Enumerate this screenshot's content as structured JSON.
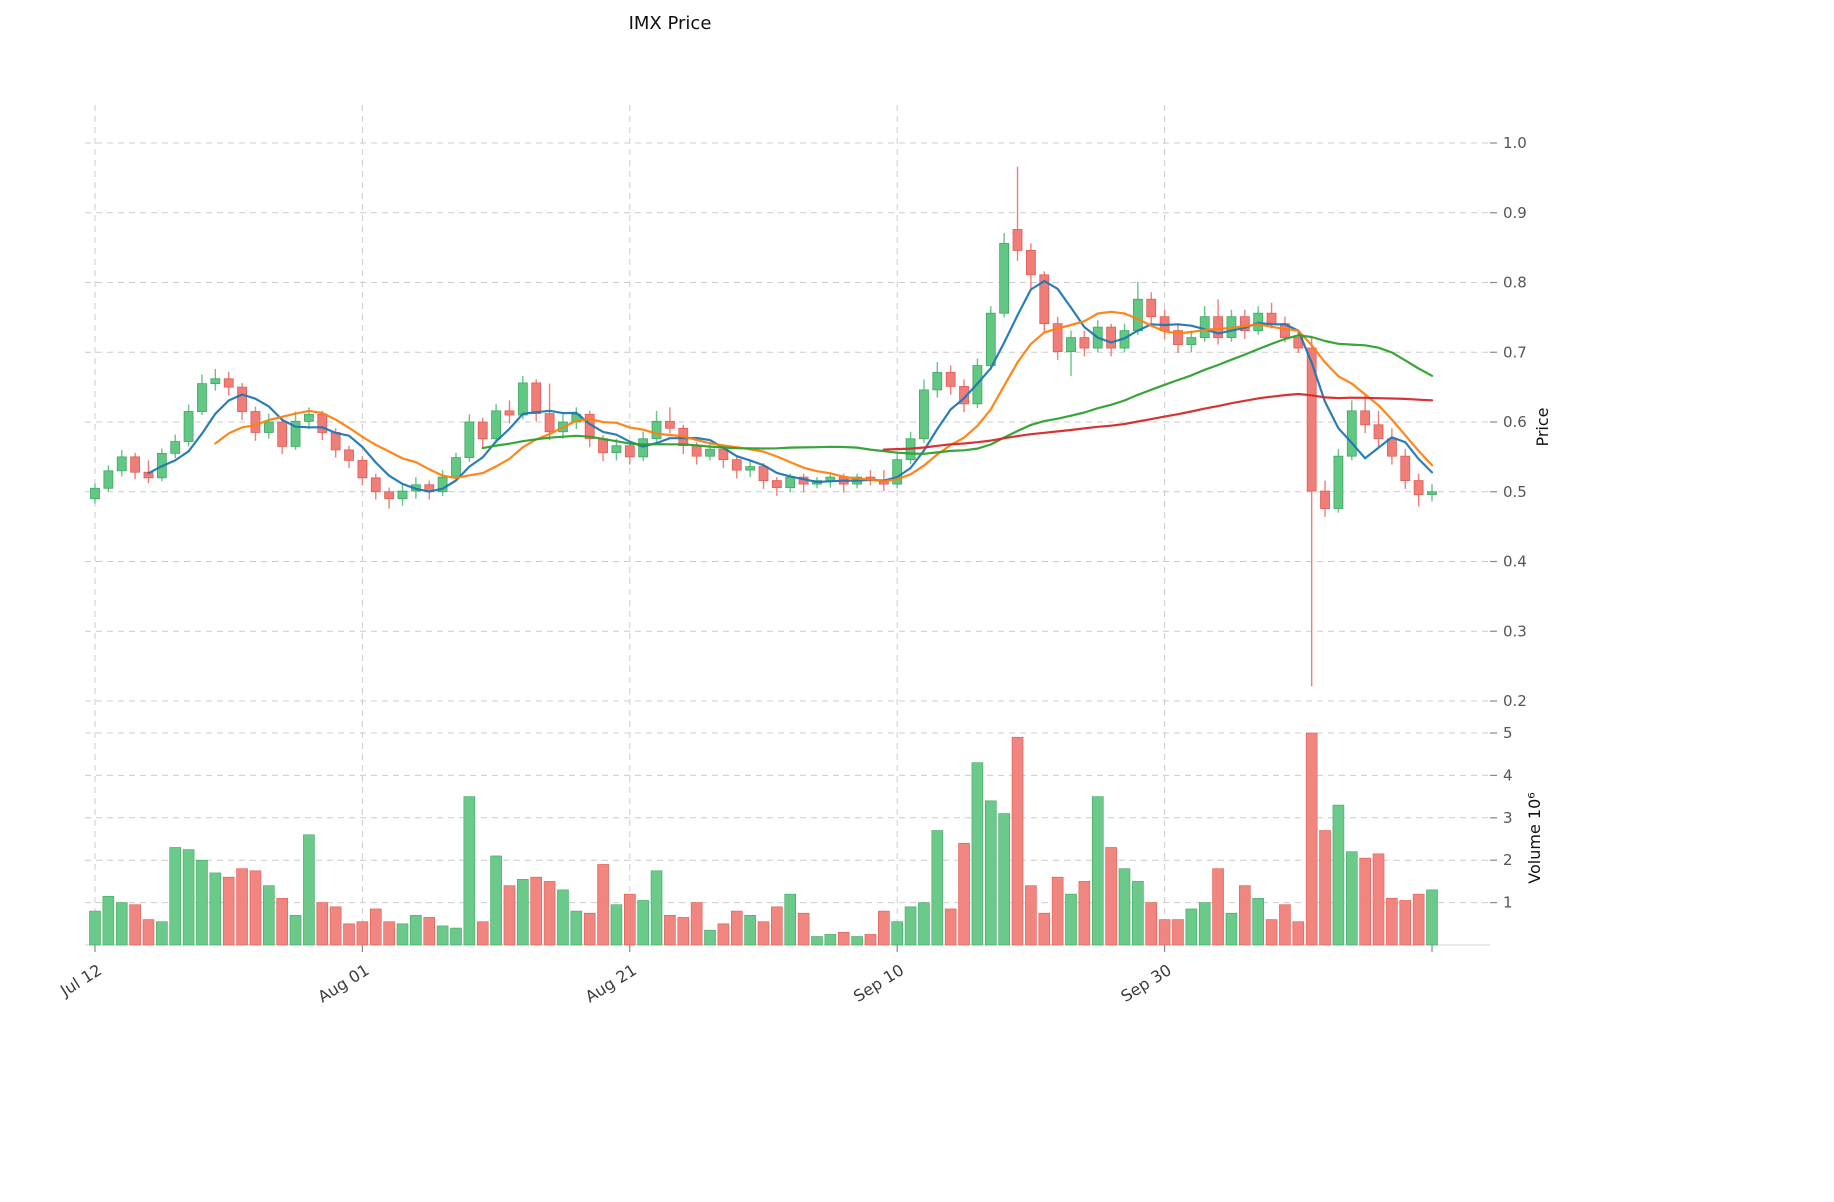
{
  "chart_data": {
    "type": "candlestick",
    "title": "IMX Price",
    "price_axis_label": "Price",
    "volume_axis_label": "Volume  10⁶",
    "price_ticks": [
      1.0,
      0.9,
      0.8,
      0.7,
      0.6,
      0.5,
      0.4,
      0.3,
      0.2
    ],
    "price_range": [
      0.2,
      1.0
    ],
    "volume_ticks": [
      5,
      4,
      3,
      2,
      1
    ],
    "volume_unit": "10^6",
    "x_ticks": [
      {
        "index": 0,
        "label": "Jul 12"
      },
      {
        "index": 20,
        "label": "Aug 01"
      },
      {
        "index": 40,
        "label": "Aug 21"
      },
      {
        "index": 60,
        "label": "Sep 10"
      },
      {
        "index": 80,
        "label": "Sep 30"
      }
    ],
    "grid": true,
    "legend": "none",
    "colors": {
      "up": "#63c784",
      "up_edge": "#3fa765",
      "down": "#f07e78",
      "down_edge": "#e05c55",
      "ma": [
        "#1f77b4",
        "#ff7f0e",
        "#2ca02c",
        "#d62728"
      ],
      "grid": "#cccccc",
      "tick_text": "#555555",
      "date_text": "#3c3c3c",
      "title_text": "#111111"
    },
    "moving_averages": [
      {
        "window": 5
      },
      {
        "window": 10
      },
      {
        "window": 30
      },
      {
        "window": 60
      }
    ],
    "dates": [
      "Jul 12",
      "Jul 13",
      "Jul 14",
      "Jul 15",
      "Jul 16",
      "Jul 17",
      "Jul 18",
      "Jul 19",
      "Jul 20",
      "Jul 21",
      "Jul 22",
      "Jul 23",
      "Jul 24",
      "Jul 25",
      "Jul 26",
      "Jul 27",
      "Jul 28",
      "Jul 29",
      "Jul 30",
      "Jul 31",
      "Aug 01",
      "Aug 02",
      "Aug 03",
      "Aug 04",
      "Aug 05",
      "Aug 06",
      "Aug 07",
      "Aug 08",
      "Aug 09",
      "Aug 10",
      "Aug 11",
      "Aug 12",
      "Aug 13",
      "Aug 14",
      "Aug 15",
      "Aug 16",
      "Aug 17",
      "Aug 18",
      "Aug 19",
      "Aug 20",
      "Aug 21",
      "Aug 22",
      "Aug 23",
      "Aug 24",
      "Aug 25",
      "Aug 26",
      "Aug 27",
      "Aug 28",
      "Aug 29",
      "Aug 30",
      "Aug 31",
      "Sep 01",
      "Sep 02",
      "Sep 03",
      "Sep 04",
      "Sep 05",
      "Sep 06",
      "Sep 07",
      "Sep 08",
      "Sep 09",
      "Sep 10",
      "Sep 11",
      "Sep 12",
      "Sep 13",
      "Sep 14",
      "Sep 15",
      "Sep 16",
      "Sep 17",
      "Sep 18",
      "Sep 19",
      "Sep 20",
      "Sep 21",
      "Sep 22",
      "Sep 23",
      "Sep 24",
      "Sep 25",
      "Sep 26",
      "Sep 27",
      "Sep 28",
      "Sep 29",
      "Sep 30",
      "Oct 01",
      "Oct 02",
      "Oct 03",
      "Oct 04",
      "Oct 05",
      "Oct 06",
      "Oct 07",
      "Oct 08",
      "Oct 09",
      "Oct 10",
      "Oct 11",
      "Oct 12",
      "Oct 13",
      "Oct 14",
      "Oct 15",
      "Oct 16",
      "Oct 17",
      "Oct 18",
      "Oct 19",
      "Oct 20"
    ],
    "open": [
      0.49,
      0.505,
      0.53,
      0.55,
      0.528,
      0.52,
      0.555,
      0.572,
      0.615,
      0.655,
      0.662,
      0.65,
      0.615,
      0.585,
      0.6,
      0.565,
      0.601,
      0.611,
      0.585,
      0.56,
      0.545,
      0.52,
      0.5,
      0.49,
      0.501,
      0.51,
      0.5,
      0.521,
      0.549,
      0.6,
      0.576,
      0.616,
      0.61,
      0.656,
      0.612,
      0.586,
      0.6,
      0.611,
      0.576,
      0.556,
      0.566,
      0.55,
      0.576,
      0.601,
      0.591,
      0.566,
      0.551,
      0.561,
      0.546,
      0.531,
      0.536,
      0.516,
      0.506,
      0.521,
      0.511,
      0.516,
      0.521,
      0.511,
      0.521,
      0.516,
      0.511,
      0.546,
      0.576,
      0.646,
      0.671,
      0.651,
      0.626,
      0.681,
      0.756,
      0.876,
      0.846,
      0.811,
      0.741,
      0.701,
      0.721,
      0.706,
      0.736,
      0.706,
      0.731,
      0.776,
      0.751,
      0.731,
      0.711,
      0.721,
      0.751,
      0.721,
      0.751,
      0.731,
      0.756,
      0.741,
      0.721,
      0.706,
      0.501,
      0.476,
      0.551,
      0.616,
      0.596,
      0.576,
      0.551,
      0.516,
      0.496
    ],
    "high": [
      0.512,
      0.538,
      0.56,
      0.556,
      0.545,
      0.562,
      0.582,
      0.625,
      0.668,
      0.676,
      0.672,
      0.656,
      0.622,
      0.612,
      0.606,
      0.615,
      0.621,
      0.616,
      0.591,
      0.566,
      0.551,
      0.526,
      0.506,
      0.511,
      0.521,
      0.516,
      0.531,
      0.556,
      0.611,
      0.606,
      0.626,
      0.631,
      0.666,
      0.661,
      0.655,
      0.611,
      0.621,
      0.616,
      0.581,
      0.576,
      0.571,
      0.586,
      0.616,
      0.621,
      0.596,
      0.571,
      0.571,
      0.566,
      0.551,
      0.546,
      0.541,
      0.521,
      0.526,
      0.526,
      0.521,
      0.526,
      0.526,
      0.526,
      0.531,
      0.531,
      0.556,
      0.586,
      0.661,
      0.686,
      0.681,
      0.661,
      0.691,
      0.766,
      0.871,
      0.966,
      0.856,
      0.816,
      0.751,
      0.731,
      0.731,
      0.746,
      0.741,
      0.741,
      0.801,
      0.786,
      0.761,
      0.741,
      0.731,
      0.766,
      0.776,
      0.761,
      0.761,
      0.766,
      0.771,
      0.751,
      0.731,
      0.721,
      0.516,
      0.561,
      0.631,
      0.641,
      0.616,
      0.591,
      0.561,
      0.526,
      0.511
    ],
    "low": [
      0.483,
      0.5,
      0.522,
      0.518,
      0.512,
      0.515,
      0.548,
      0.565,
      0.61,
      0.645,
      0.638,
      0.603,
      0.573,
      0.576,
      0.554,
      0.56,
      0.59,
      0.574,
      0.549,
      0.534,
      0.509,
      0.489,
      0.476,
      0.48,
      0.49,
      0.489,
      0.494,
      0.515,
      0.543,
      0.563,
      0.57,
      0.598,
      0.604,
      0.601,
      0.574,
      0.576,
      0.59,
      0.564,
      0.544,
      0.545,
      0.539,
      0.544,
      0.57,
      0.584,
      0.554,
      0.539,
      0.545,
      0.534,
      0.519,
      0.521,
      0.504,
      0.494,
      0.5,
      0.499,
      0.505,
      0.506,
      0.499,
      0.505,
      0.509,
      0.501,
      0.505,
      0.54,
      0.57,
      0.635,
      0.639,
      0.614,
      0.62,
      0.675,
      0.75,
      0.831,
      0.789,
      0.729,
      0.689,
      0.666,
      0.694,
      0.7,
      0.694,
      0.7,
      0.725,
      0.739,
      0.719,
      0.699,
      0.7,
      0.715,
      0.711,
      0.715,
      0.719,
      0.725,
      0.734,
      0.714,
      0.699,
      0.221,
      0.464,
      0.47,
      0.545,
      0.584,
      0.564,
      0.539,
      0.504,
      0.479,
      0.486
    ],
    "close": [
      0.505,
      0.53,
      0.55,
      0.528,
      0.52,
      0.555,
      0.572,
      0.615,
      0.655,
      0.662,
      0.65,
      0.615,
      0.585,
      0.6,
      0.565,
      0.601,
      0.611,
      0.585,
      0.56,
      0.545,
      0.52,
      0.5,
      0.49,
      0.501,
      0.51,
      0.5,
      0.521,
      0.549,
      0.6,
      0.576,
      0.616,
      0.61,
      0.656,
      0.612,
      0.586,
      0.6,
      0.611,
      0.576,
      0.556,
      0.566,
      0.55,
      0.576,
      0.601,
      0.591,
      0.566,
      0.551,
      0.561,
      0.546,
      0.531,
      0.536,
      0.516,
      0.506,
      0.521,
      0.511,
      0.516,
      0.521,
      0.511,
      0.521,
      0.516,
      0.511,
      0.546,
      0.576,
      0.646,
      0.671,
      0.651,
      0.626,
      0.681,
      0.756,
      0.856,
      0.846,
      0.811,
      0.741,
      0.701,
      0.721,
      0.706,
      0.736,
      0.706,
      0.731,
      0.776,
      0.751,
      0.731,
      0.711,
      0.721,
      0.751,
      0.721,
      0.751,
      0.731,
      0.756,
      0.741,
      0.721,
      0.706,
      0.501,
      0.476,
      0.551,
      0.616,
      0.596,
      0.576,
      0.551,
      0.516,
      0.496,
      0.5
    ],
    "volume": [
      0.8,
      1.15,
      1.0,
      0.95,
      0.6,
      0.55,
      2.3,
      2.25,
      2.0,
      1.7,
      1.6,
      1.8,
      1.75,
      1.4,
      1.1,
      0.7,
      2.6,
      1.0,
      0.9,
      0.5,
      0.55,
      0.85,
      0.55,
      0.5,
      0.7,
      0.65,
      0.45,
      0.4,
      3.5,
      0.55,
      2.1,
      1.4,
      1.55,
      1.6,
      1.5,
      1.3,
      0.8,
      0.75,
      1.9,
      0.95,
      1.2,
      1.05,
      1.75,
      0.7,
      0.65,
      1.0,
      0.35,
      0.5,
      0.8,
      0.7,
      0.55,
      0.9,
      1.2,
      0.75,
      0.2,
      0.25,
      0.3,
      0.2,
      0.25,
      0.8,
      0.55,
      0.9,
      1.0,
      2.7,
      0.85,
      2.4,
      4.3,
      3.4,
      3.1,
      4.9,
      1.4,
      0.75,
      1.6,
      1.2,
      1.5,
      3.5,
      2.3,
      1.8,
      1.5,
      1.0,
      0.6,
      0.6,
      0.85,
      1.0,
      1.8,
      0.75,
      1.4,
      1.1,
      0.6,
      0.95,
      0.55,
      5.0,
      2.7,
      3.3,
      2.2,
      2.05,
      2.15,
      1.1,
      1.05,
      1.2,
      1.3
    ]
  }
}
